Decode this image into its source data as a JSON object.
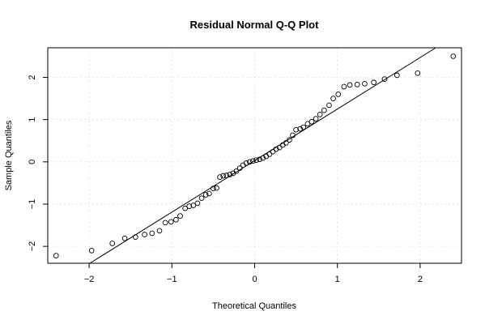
{
  "chart_data": {
    "type": "scatter",
    "title": "Residual Normal Q-Q Plot",
    "xlabel": "Theoretical Quantiles",
    "ylabel": "Sample Quantiles",
    "xlim": [
      -2.5,
      2.5
    ],
    "ylim": [
      -2.4,
      2.7
    ],
    "xticks": [
      -2,
      -1,
      0,
      1,
      2
    ],
    "yticks": [
      -2,
      -1,
      0,
      1,
      2
    ],
    "xtick_labels": [
      "−2",
      "−1",
      "0",
      "1",
      "2"
    ],
    "ytick_labels": [
      "−2",
      "−1",
      "0",
      "1",
      "2"
    ],
    "grid": true,
    "reference_line": {
      "intercept": 0.03,
      "slope": 1.22
    },
    "points": {
      "x": [
        -2.4,
        -1.97,
        -1.72,
        -1.57,
        -1.44,
        -1.33,
        -1.24,
        -1.15,
        -1.08,
        -1.01,
        -0.95,
        -0.9,
        -0.84,
        -0.79,
        -0.74,
        -0.69,
        -0.64,
        -0.59,
        -0.55,
        -0.5,
        -0.46,
        -0.42,
        -0.38,
        -0.34,
        -0.3,
        -0.26,
        -0.22,
        -0.18,
        -0.14,
        -0.1,
        -0.06,
        -0.02,
        0.02,
        0.06,
        0.1,
        0.14,
        0.18,
        0.22,
        0.26,
        0.3,
        0.34,
        0.38,
        0.42,
        0.46,
        0.5,
        0.55,
        0.59,
        0.64,
        0.69,
        0.74,
        0.79,
        0.84,
        0.9,
        0.95,
        1.01,
        1.08,
        1.15,
        1.24,
        1.33,
        1.44,
        1.57,
        1.72,
        1.97,
        2.4
      ],
      "y": [
        -2.22,
        -2.1,
        -1.93,
        -1.81,
        -1.78,
        -1.72,
        -1.69,
        -1.63,
        -1.44,
        -1.42,
        -1.37,
        -1.28,
        -1.1,
        -1.05,
        -1.03,
        -0.98,
        -0.86,
        -0.78,
        -0.75,
        -0.63,
        -0.62,
        -0.36,
        -0.33,
        -0.32,
        -0.3,
        -0.27,
        -0.22,
        -0.15,
        -0.08,
        -0.03,
        0.0,
        0.02,
        0.04,
        0.06,
        0.09,
        0.13,
        0.18,
        0.24,
        0.3,
        0.34,
        0.4,
        0.45,
        0.52,
        0.63,
        0.76,
        0.78,
        0.82,
        0.9,
        0.95,
        1.02,
        1.12,
        1.22,
        1.34,
        1.5,
        1.6,
        1.78,
        1.82,
        1.83,
        1.85,
        1.88,
        1.96,
        2.05,
        2.1,
        2.5
      ]
    }
  }
}
